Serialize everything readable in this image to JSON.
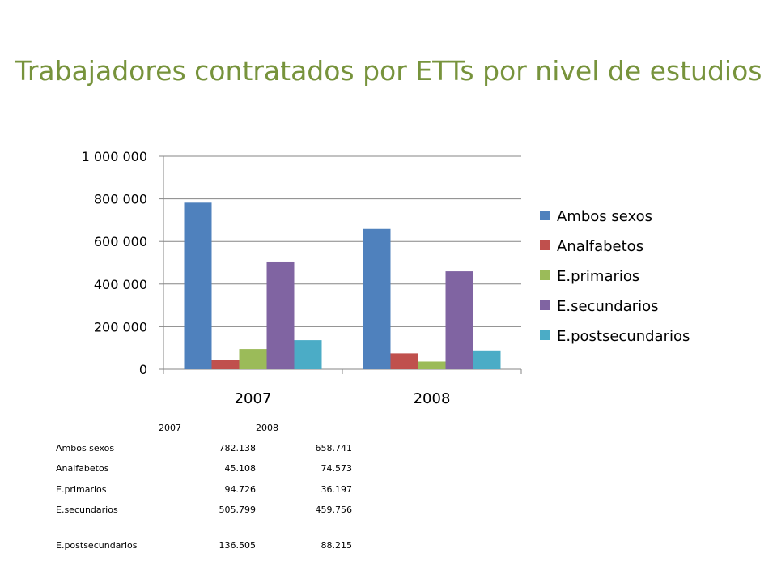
{
  "slide": {
    "title": "Trabajadores contratados por ETTs por nivel de estudios"
  },
  "chart_data": {
    "type": "bar",
    "title": "",
    "xlabel": "",
    "ylabel": "",
    "categories": [
      "2007",
      "2008"
    ],
    "ylim": [
      0,
      1000000
    ],
    "yticks": [
      0,
      200000,
      400000,
      600000,
      800000,
      1000000
    ],
    "ytick_labels": [
      "0",
      "200 000",
      "400 000",
      "600 000",
      "800 000",
      "1 000 000"
    ],
    "grid": true,
    "legend": "right",
    "series": [
      {
        "name": "Ambos sexos",
        "color": "#4F81BD",
        "values": [
          782138,
          658741
        ]
      },
      {
        "name": "Analfabetos",
        "color": "#C0504D",
        "values": [
          45108,
          74573
        ]
      },
      {
        "name": "E.primarios",
        "color": "#9BBB59",
        "values": [
          94726,
          36197
        ]
      },
      {
        "name": "E.secundarios",
        "color": "#8064A2",
        "values": [
          505799,
          459756
        ]
      },
      {
        "name": "E.postsecundarios",
        "color": "#4BACC6",
        "values": [
          136505,
          88215
        ]
      }
    ]
  },
  "table": {
    "headers": [
      "2007",
      "2008"
    ],
    "rows": [
      {
        "label": "Ambos sexos",
        "v2007": "782.138",
        "v2008": "658.741"
      },
      {
        "label": "Analfabetos",
        "v2007": "45.108",
        "v2008": "74.573"
      },
      {
        "label": "E.primarios",
        "v2007": "94.726",
        "v2008": "36.197"
      },
      {
        "label": "E.secundarios",
        "v2007": "505.799",
        "v2008": "459.756"
      },
      {
        "label": "E.postsecundarios",
        "v2007": "136.505",
        "v2008": "88.215"
      }
    ]
  }
}
